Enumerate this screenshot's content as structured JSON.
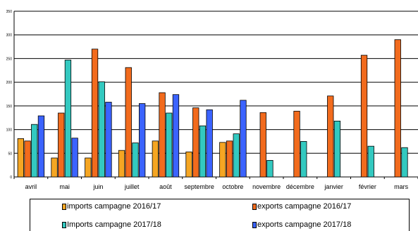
{
  "chart_data": {
    "type": "bar",
    "categories": [
      "avril",
      "mai",
      "juin",
      "juillet",
      "août",
      "septembre",
      "octobre",
      "novembre",
      "décembre",
      "janvier",
      "février",
      "mars"
    ],
    "ylim": [
      0,
      350
    ],
    "yticks": [
      0,
      50,
      100,
      150,
      200,
      250,
      300,
      350
    ],
    "grid": true,
    "legend_position": "bottom",
    "series": [
      {
        "name": "imports campagne 2016/17",
        "color": "#f5a623",
        "values": [
          81,
          40,
          40,
          56,
          76,
          53,
          73,
          null,
          null,
          null,
          null,
          null
        ]
      },
      {
        "name": "exports campagne 2016/17",
        "color": "#f26b1d",
        "values": [
          76,
          135,
          270,
          231,
          178,
          146,
          76,
          136,
          139,
          171,
          257,
          290
        ]
      },
      {
        "name": "Imports campagne 2017/18",
        "color": "#33c9c0",
        "values": [
          111,
          247,
          201,
          72,
          135,
          108,
          91,
          35,
          75,
          118,
          65,
          62
        ]
      },
      {
        "name": "exports campagne 2017/18",
        "color": "#3b63ff",
        "values": [
          129,
          82,
          158,
          155,
          174,
          142,
          162,
          null,
          null,
          null,
          null,
          null
        ]
      }
    ]
  }
}
